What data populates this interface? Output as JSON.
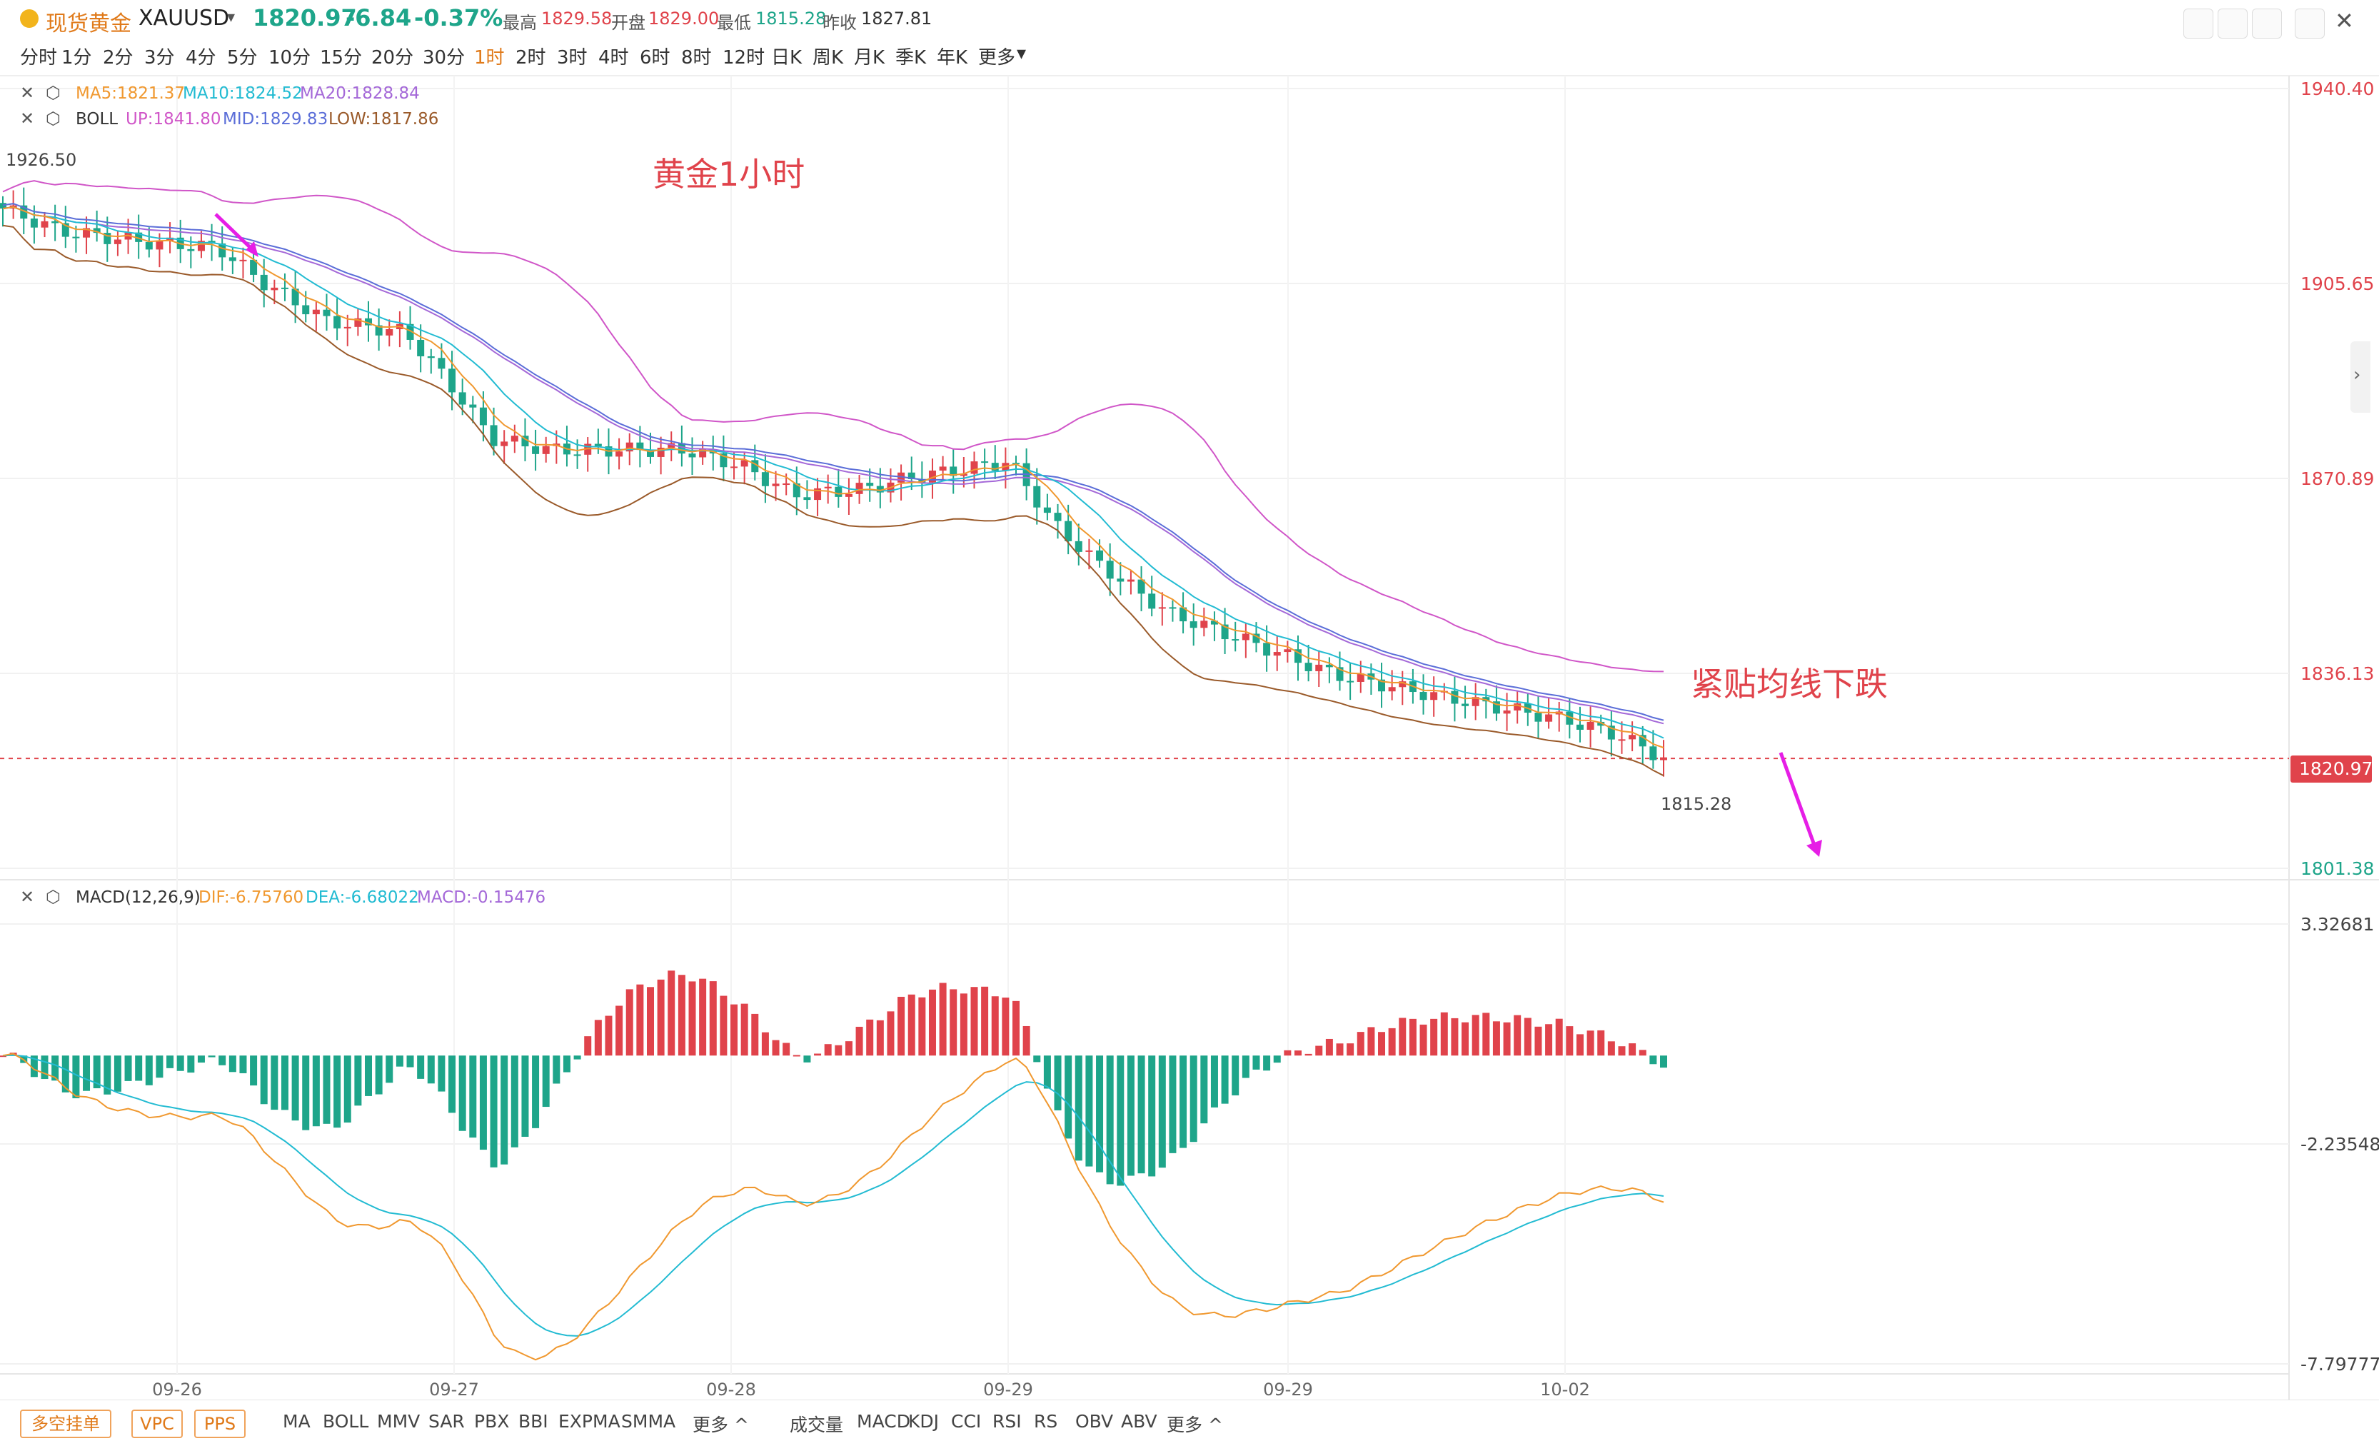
{
  "header": {
    "name": "现货黄金",
    "symbol": "XAUUSD",
    "price": "1820.97",
    "change": "-6.84",
    "change_pct": "-0.37%",
    "high_label": "最高",
    "high": "1829.58",
    "open_label": "开盘",
    "open": "1829.00",
    "low_label": "最低",
    "low": "1815.28",
    "prev_label": "昨收",
    "prev": "1827.81",
    "colors": {
      "up": "#e0434b",
      "down": "#1ea58a",
      "ma5": "#f0982f",
      "ma10": "#22bbd2",
      "ma20": "#a468d8"
    }
  },
  "timeframes": [
    "分时",
    "1分",
    "2分",
    "3分",
    "4分",
    "5分",
    "10分",
    "15分",
    "20分",
    "30分",
    "1时",
    "2时",
    "3时",
    "4时",
    "6时",
    "8时",
    "12时",
    "日K",
    "周K",
    "月K",
    "季K",
    "年K",
    "更多"
  ],
  "active_timeframe": "1时",
  "indicators": {
    "ma": {
      "ma5": "MA5:1821.37",
      "ma10": "MA10:1824.52",
      "ma20": "MA20:1828.84"
    },
    "boll": {
      "name": "BOLL",
      "up": "UP:1841.80",
      "mid": "MID:1829.83",
      "low": "LOW:1817.86"
    },
    "macd": {
      "name": "MACD(12,26,9)",
      "dif": "DIF:-6.75760",
      "dea": "DEA:-6.68022",
      "macd": "MACD:-0.15476"
    }
  },
  "annotations": {
    "title": "黄金1小时",
    "note": "紧贴均线下跌",
    "high_marker": "1926.50",
    "low_marker": "1815.28"
  },
  "chart_data": {
    "type": "candlestick",
    "price_axis": {
      "ticks": [
        "1940.40",
        "1905.65",
        "1870.89",
        "1836.13",
        "1801.38"
      ],
      "current": "1820.97"
    },
    "macd_axis": {
      "ticks": [
        "3.32681",
        "-2.23548",
        "-7.79777"
      ]
    },
    "x_labels": [
      "09-26",
      "09-27",
      "09-28",
      "09-29",
      "09-29",
      "10-02"
    ],
    "ylim": [
      1801.38,
      1940.4
    ],
    "macd_ylim": [
      -7.79777,
      3.32681
    ]
  },
  "bottom": {
    "buttons": [
      "多空挂单",
      "VPC",
      "PPS"
    ],
    "main_indicators": [
      "MA",
      "BOLL",
      "MMV",
      "SAR",
      "PBX",
      "BBI",
      "EXPMA",
      "SMMA",
      "更多 ^"
    ],
    "sub_indicators": [
      "成交量",
      "MACD",
      "KDJ",
      "CCI",
      "RSI",
      "RS",
      "OBV",
      "ABV",
      "更多 ^"
    ]
  }
}
